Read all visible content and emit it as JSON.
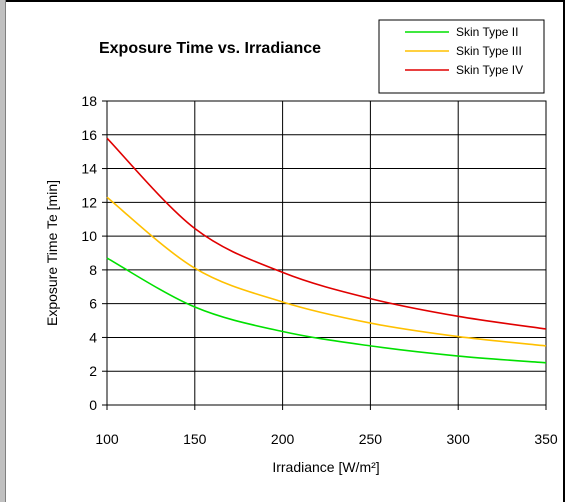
{
  "chart_data": {
    "type": "line",
    "title": "Exposure Time vs. Irradiance",
    "xlabel": "Irradiance [W/m²]",
    "ylabel": "Exposure Time Te [min]",
    "x": [
      100,
      150,
      200,
      250,
      300,
      350
    ],
    "xticks": [
      100,
      150,
      200,
      250,
      300,
      350
    ],
    "yticks": [
      0,
      2,
      4,
      6,
      8,
      10,
      12,
      14,
      16,
      18
    ],
    "xlim": [
      100,
      350
    ],
    "ylim": [
      0,
      18
    ],
    "grid": true,
    "legend_position": "top-right",
    "series": [
      {
        "name": "Skin Type II",
        "color": "#00e000",
        "values": [
          8.7,
          5.8,
          4.35,
          3.5,
          2.9,
          2.5
        ]
      },
      {
        "name": "Skin Type III",
        "color": "#ffc000",
        "values": [
          12.3,
          8.1,
          6.1,
          4.85,
          4.05,
          3.5
        ]
      },
      {
        "name": "Skin Type IV",
        "color": "#e00000",
        "values": [
          15.8,
          10.45,
          7.85,
          6.3,
          5.25,
          4.5
        ]
      }
    ]
  }
}
